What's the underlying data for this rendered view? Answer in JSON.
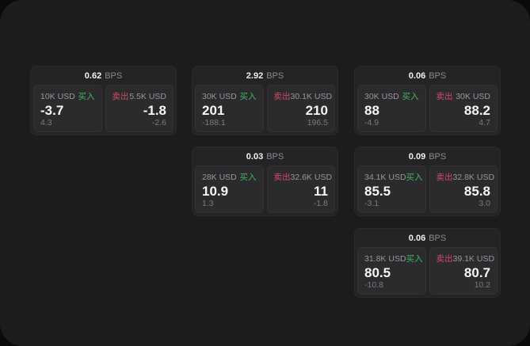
{
  "window": {
    "outer_bg": "#0a0a0a",
    "bg": "#1c1c1d"
  },
  "colors": {
    "card_bg": "#242426",
    "panel_bg": "#2b2b2d",
    "label_gray": "#98989c",
    "dim_gray": "#7b7b7f",
    "value_white": "#f7f7f7",
    "buy_green": "#3eb863",
    "sell_red": "#d44a66"
  },
  "labels": {
    "bps_unit": "BPS",
    "buy": "买入",
    "sell": "卖出"
  },
  "cards": [
    {
      "bps": "0.62",
      "col": 0,
      "row": 0,
      "buy": {
        "size": "10K USD",
        "price": "-3.7",
        "delta": "4.3"
      },
      "sell": {
        "size": "5.5K USD",
        "price": "-1.8",
        "delta": "-2.6"
      }
    },
    {
      "bps": "2.92",
      "col": 1,
      "row": 0,
      "buy": {
        "size": "30K USD",
        "price": "201",
        "delta": "-188.1"
      },
      "sell": {
        "size": "30.1K USD",
        "price": "210",
        "delta": "196.5"
      }
    },
    {
      "bps": "0.06",
      "col": 2,
      "row": 0,
      "buy": {
        "size": "30K USD",
        "price": "88",
        "delta": "-4.9"
      },
      "sell": {
        "size": "30K USD",
        "price": "88.2",
        "delta": "4.7"
      }
    },
    {
      "bps": "0.03",
      "col": 1,
      "row": 1,
      "buy": {
        "size": "28K USD",
        "price": "10.9",
        "delta": "1.3"
      },
      "sell": {
        "size": "32.6K USD",
        "price": "11",
        "delta": "-1.8"
      }
    },
    {
      "bps": "0.09",
      "col": 2,
      "row": 1,
      "buy": {
        "size": "34.1K USD",
        "price": "85.5",
        "delta": "-3.1"
      },
      "sell": {
        "size": "32.8K USD",
        "price": "85.8",
        "delta": "3.0"
      }
    },
    {
      "bps": "0.06",
      "col": 2,
      "row": 2,
      "buy": {
        "size": "31.8K USD",
        "price": "80.5",
        "delta": "-10.8"
      },
      "sell": {
        "size": "39.1K USD",
        "price": "80.7",
        "delta": "10.2"
      }
    }
  ],
  "layout": {
    "col_lefts": [
      38,
      242,
      447
    ],
    "row_tops": [
      83,
      185,
      288
    ]
  }
}
